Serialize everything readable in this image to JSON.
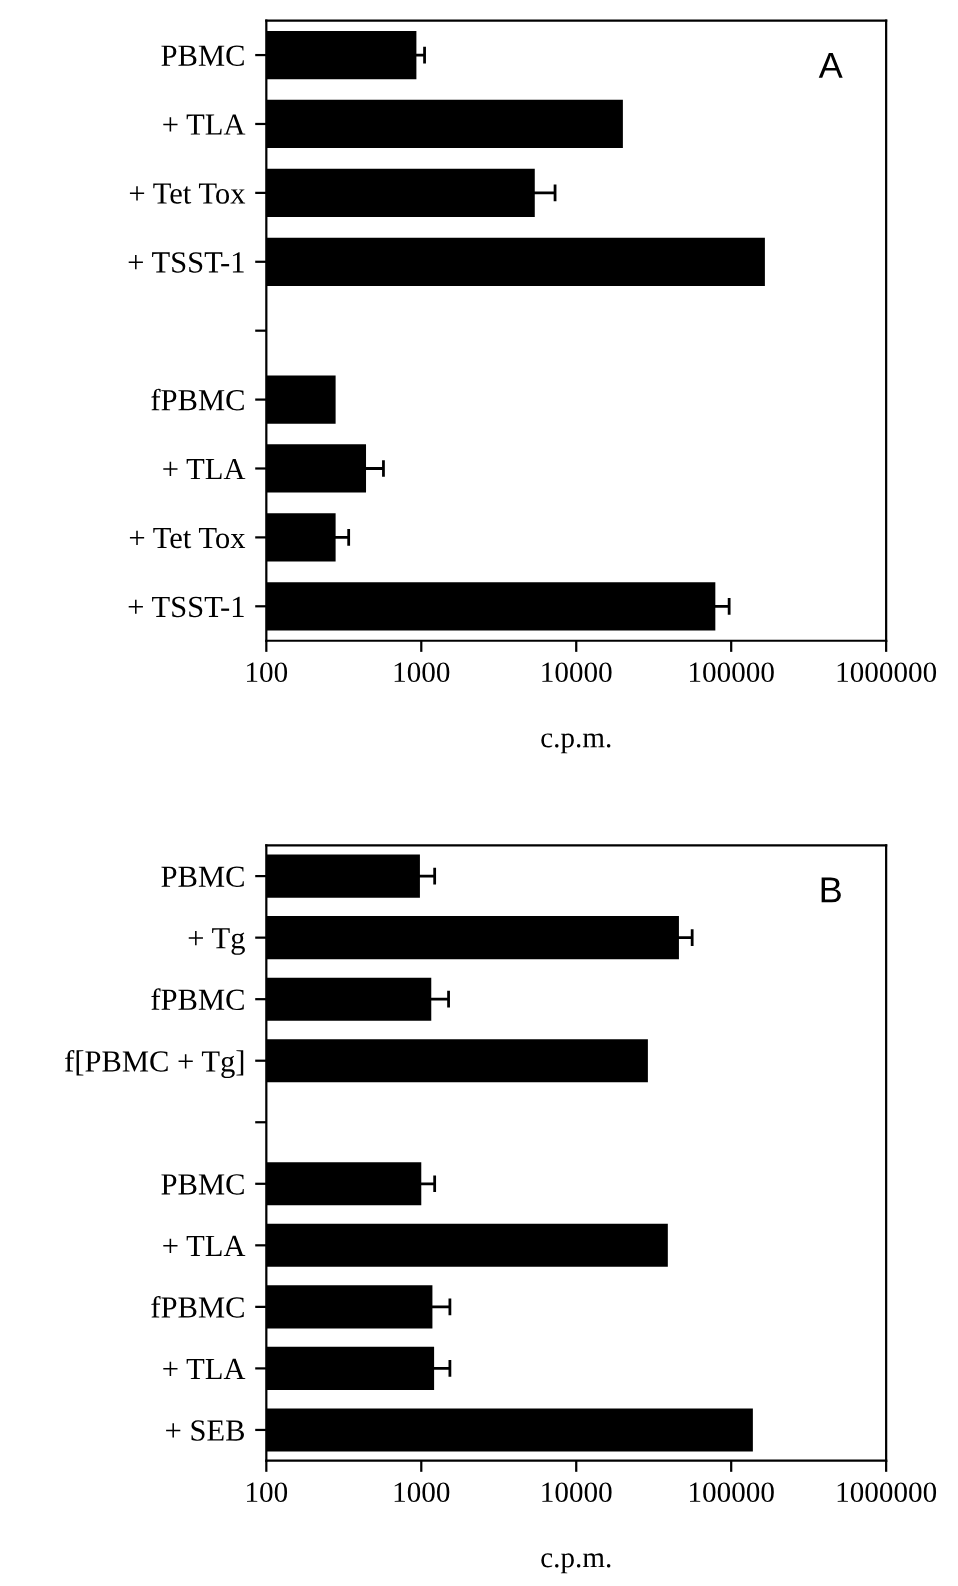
{
  "chart_data": [
    {
      "type": "bar",
      "orientation": "horizontal",
      "log": "x",
      "xlabel": "c.p.m.",
      "annotations": [
        "A"
      ],
      "categories": [
        "PBMC",
        "+ TLA",
        "+ Tet Tox",
        "+ TSST-1",
        null,
        "fPBMC",
        "+ TLA",
        "+ Tet Tox",
        "+ TSST-1"
      ],
      "values": [
        930,
        20000,
        5400,
        165000,
        null,
        280,
        440,
        280,
        79000
      ],
      "errors": [
        120,
        null,
        1900,
        null,
        null,
        null,
        130,
        60,
        18000
      ],
      "color": "#000000",
      "xlim": [
        100,
        1000000
      ],
      "xticks": [
        100,
        1000,
        10000,
        100000,
        1000000
      ],
      "grid": false,
      "legend": false
    },
    {
      "type": "bar",
      "orientation": "horizontal",
      "log": "x",
      "xlabel": "c.p.m.",
      "annotations": [
        "B"
      ],
      "categories": [
        "PBMC",
        "+ Tg",
        "fPBMC",
        "f[PBMC + Tg]",
        null,
        "PBMC",
        "+ TLA",
        "fPBMC",
        "+ TLA",
        "+ SEB"
      ],
      "values": [
        980,
        46000,
        1160,
        29000,
        null,
        1000,
        39000,
        1180,
        1210,
        138000
      ],
      "errors": [
        240,
        10000,
        340,
        null,
        null,
        220,
        null,
        350,
        320,
        null
      ],
      "color": "#000000",
      "xlim": [
        100,
        1000000
      ],
      "xticks": [
        100,
        1000,
        10000,
        100000,
        1000000
      ],
      "grid": false,
      "legend": false
    }
  ]
}
